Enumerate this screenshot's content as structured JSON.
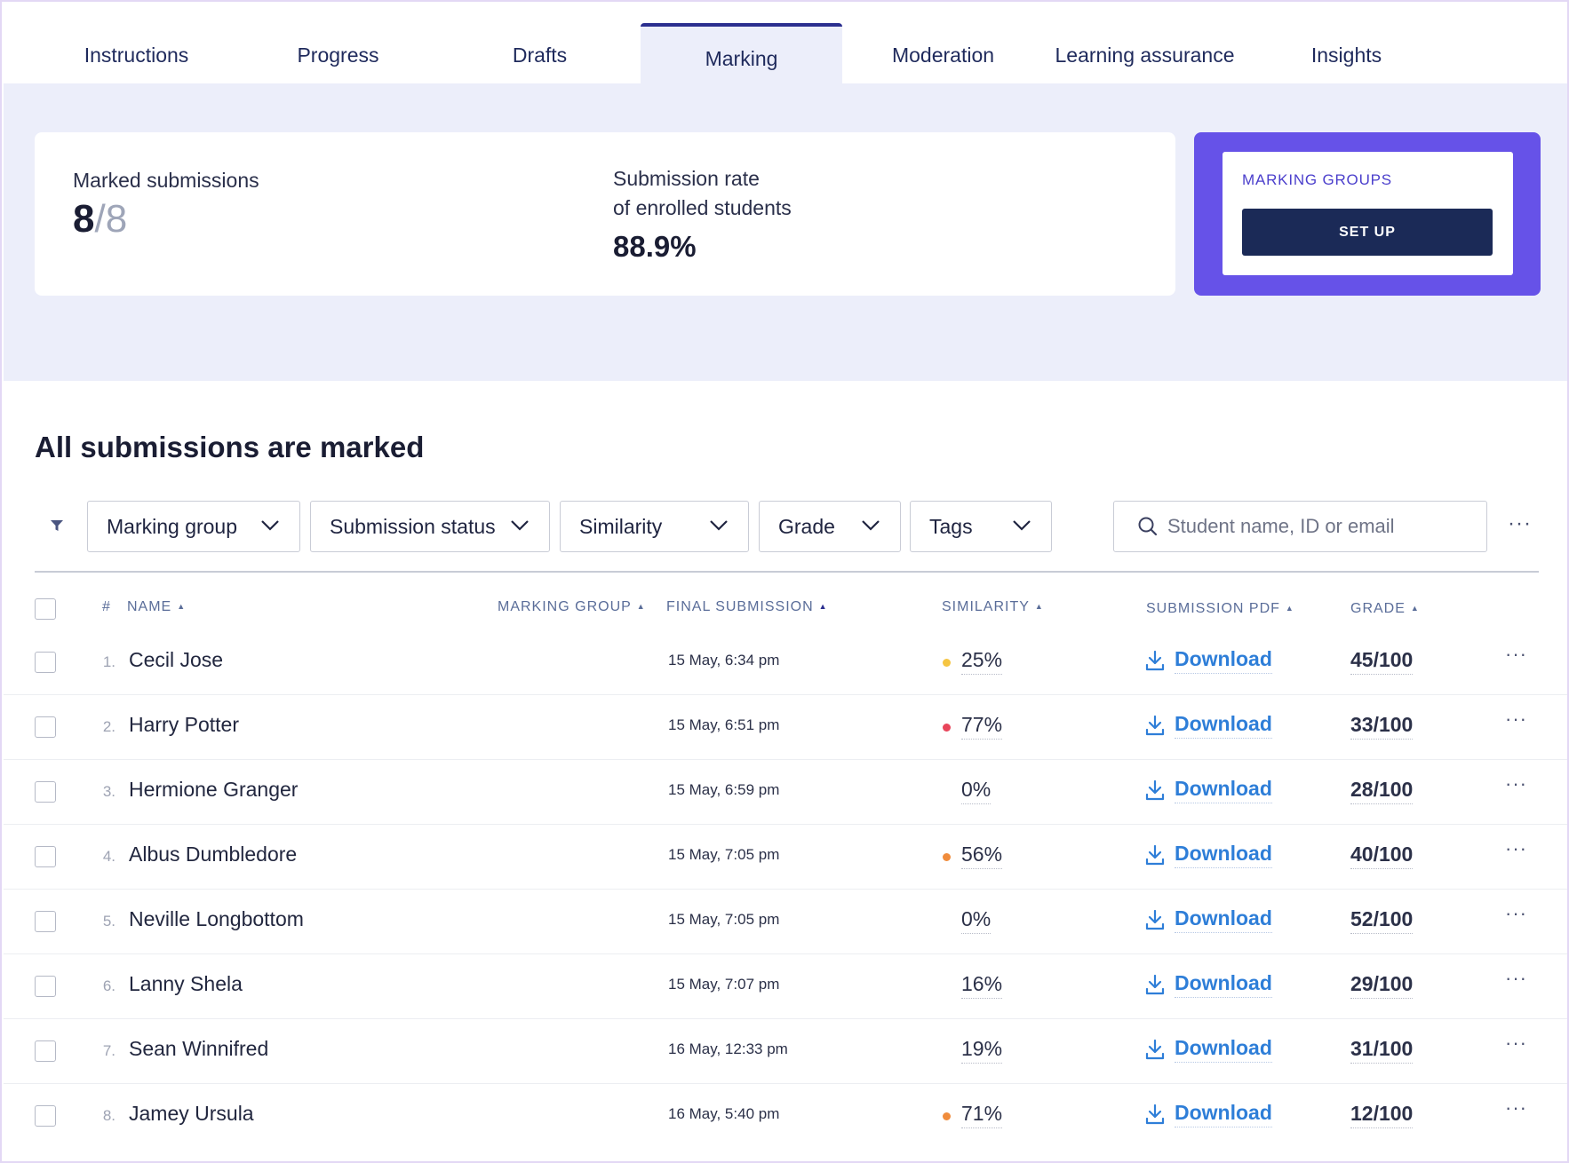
{
  "tabs": [
    {
      "label": "Instructions"
    },
    {
      "label": "Progress"
    },
    {
      "label": "Drafts"
    },
    {
      "label": "Marking",
      "active": true
    },
    {
      "label": "Moderation"
    },
    {
      "label": "Learning assurance"
    },
    {
      "label": "Insights"
    }
  ],
  "summary": {
    "marked_label": "Marked submissions",
    "marked_count": "8",
    "marked_total": "/8",
    "rate_label_line1": "Submission rate",
    "rate_label_line2": "of enrolled students",
    "rate_value": "88.9%"
  },
  "marking_groups": {
    "title": "MARKING GROUPS",
    "button": "SET UP"
  },
  "heading": "All submissions are marked",
  "filters": {
    "marking_group": "Marking group",
    "submission_status": "Submission status",
    "similarity": "Similarity",
    "grade": "Grade",
    "tags": "Tags",
    "search_placeholder": "Student name, ID or email",
    "more": "···"
  },
  "columns": {
    "hash": "#",
    "name": "NAME",
    "marking_group": "MARKING GROUP",
    "final_submission": "FINAL SUBMISSION",
    "similarity": "SIMILARITY",
    "submission_pdf": "SUBMISSION PDF",
    "grade": "GRADE",
    "sort_up": "▲"
  },
  "colors": {
    "accent": "#6652e8",
    "navy": "#1b2a57",
    "link": "#2e7ed8",
    "similarity_low": "#f5c542",
    "similarity_high": "#e8455a",
    "similarity_mid": "#f08c3c"
  },
  "rows": [
    {
      "index": "1.",
      "name": "Cecil Jose",
      "date": "15 May, 6:34 pm",
      "similarity": "25%",
      "dot": "#f5c542",
      "download": "Download",
      "grade": "45/100",
      "more": "···"
    },
    {
      "index": "2.",
      "name": "Harry Potter",
      "date": "15 May, 6:51 pm",
      "similarity": "77%",
      "dot": "#e8455a",
      "download": "Download",
      "grade": "33/100",
      "more": "···"
    },
    {
      "index": "3.",
      "name": "Hermione Granger",
      "date": "15 May, 6:59 pm",
      "similarity": "0%",
      "dot": "",
      "download": "Download",
      "grade": "28/100",
      "more": "···"
    },
    {
      "index": "4.",
      "name": "Albus Dumbledore",
      "date": "15 May, 7:05 pm",
      "similarity": "56%",
      "dot": "#f08c3c",
      "download": "Download",
      "grade": "40/100",
      "more": "···"
    },
    {
      "index": "5.",
      "name": "Neville Longbottom",
      "date": "15 May, 7:05 pm",
      "similarity": "0%",
      "dot": "",
      "download": "Download",
      "grade": "52/100",
      "more": "···"
    },
    {
      "index": "6.",
      "name": "Lanny Shela",
      "date": "15 May, 7:07 pm",
      "similarity": "16%",
      "dot": "",
      "download": "Download",
      "grade": "29/100",
      "more": "···"
    },
    {
      "index": "7.",
      "name": "Sean Winnifred",
      "date": "16 May, 12:33 pm",
      "similarity": "19%",
      "dot": "",
      "download": "Download",
      "grade": "31/100",
      "more": "···"
    },
    {
      "index": "8.",
      "name": "Jamey Ursula",
      "date": "16 May, 5:40 pm",
      "similarity": "71%",
      "dot": "#f08c3c",
      "download": "Download",
      "grade": "12/100",
      "more": "···"
    }
  ]
}
